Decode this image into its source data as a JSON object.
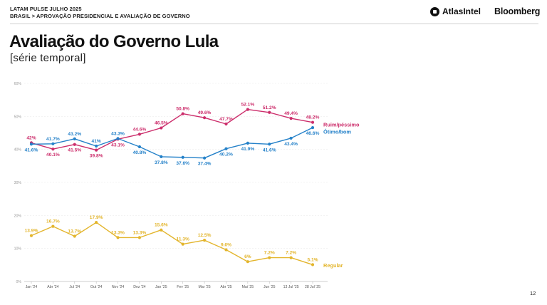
{
  "header": {
    "report_title": "LATAM PULSE JULHO 2025",
    "breadcrumb": "BRASIL > APROVAÇÃO PRESIDENCIAL E AVALIAÇÃO DE GOVERNO",
    "logo_atlas": "AtlasIntel",
    "logo_bloomberg": "Bloomberg"
  },
  "title": "Avaliação do Governo Lula",
  "subtitle": "[série temporal]",
  "page_number": "12",
  "chart_data": {
    "type": "line",
    "title": "Avaliação do Governo Lula",
    "subtitle": "[série temporal]",
    "categories": [
      "Jan '24",
      "Abr '24",
      "Jul '24",
      "Out '24",
      "Nov '24",
      "Dez '24",
      "Jan '25",
      "Fev '25",
      "Mar '25",
      "Abr '25",
      "Mai '25",
      "Jun '25",
      "13 Jul '25",
      "28 Jul '25"
    ],
    "ylim": [
      0,
      60
    ],
    "yticks": [
      "0%",
      "10%",
      "20%",
      "30%",
      "40%",
      "50%",
      "60%"
    ],
    "grid": true,
    "legend": "right, at line ends",
    "series": [
      {
        "name": "Ruim/péssimo",
        "color": "#cc2d6b",
        "values": [
          42,
          40.1,
          41.5,
          39.8,
          43.1,
          44.6,
          46.5,
          50.8,
          49.6,
          47.7,
          52.1,
          51.2,
          49.4,
          48.2
        ],
        "labels": [
          "42%",
          "40.1%",
          "41.5%",
          "39.8%",
          "43.1%",
          "44.6%",
          "46.5%",
          "50.8%",
          "49.6%",
          "47.7%",
          "52.1%",
          "51.2%",
          "49.4%",
          "48.2%"
        ]
      },
      {
        "name": "Ótimo/bom",
        "color": "#2481c9",
        "values": [
          41.6,
          41.7,
          43.2,
          41,
          43.3,
          40.8,
          37.8,
          37.6,
          37.4,
          40.2,
          41.9,
          41.6,
          43.4,
          46.6
        ],
        "labels": [
          "41.6%",
          "41.7%",
          "43.2%",
          "41%",
          "43.3%",
          "40.8%",
          "37.8%",
          "37.6%",
          "37.4%",
          "40.2%",
          "41.9%",
          "41.6%",
          "43.4%",
          "46.6%"
        ]
      },
      {
        "name": "Regular",
        "color": "#e3b52c",
        "values": [
          13.9,
          16.7,
          13.7,
          17.9,
          13.3,
          13.3,
          15.6,
          11.3,
          12.5,
          9.6,
          6,
          7.2,
          7.2,
          5.1
        ],
        "labels": [
          "13.9%",
          "16.7%",
          "13.7%",
          "17.9%",
          "13.3%",
          "13.3%",
          "15.6%",
          "11.3%",
          "12.5%",
          "9.6%",
          "6%",
          "7.2%",
          "7.2%",
          "5.1%"
        ]
      }
    ]
  }
}
